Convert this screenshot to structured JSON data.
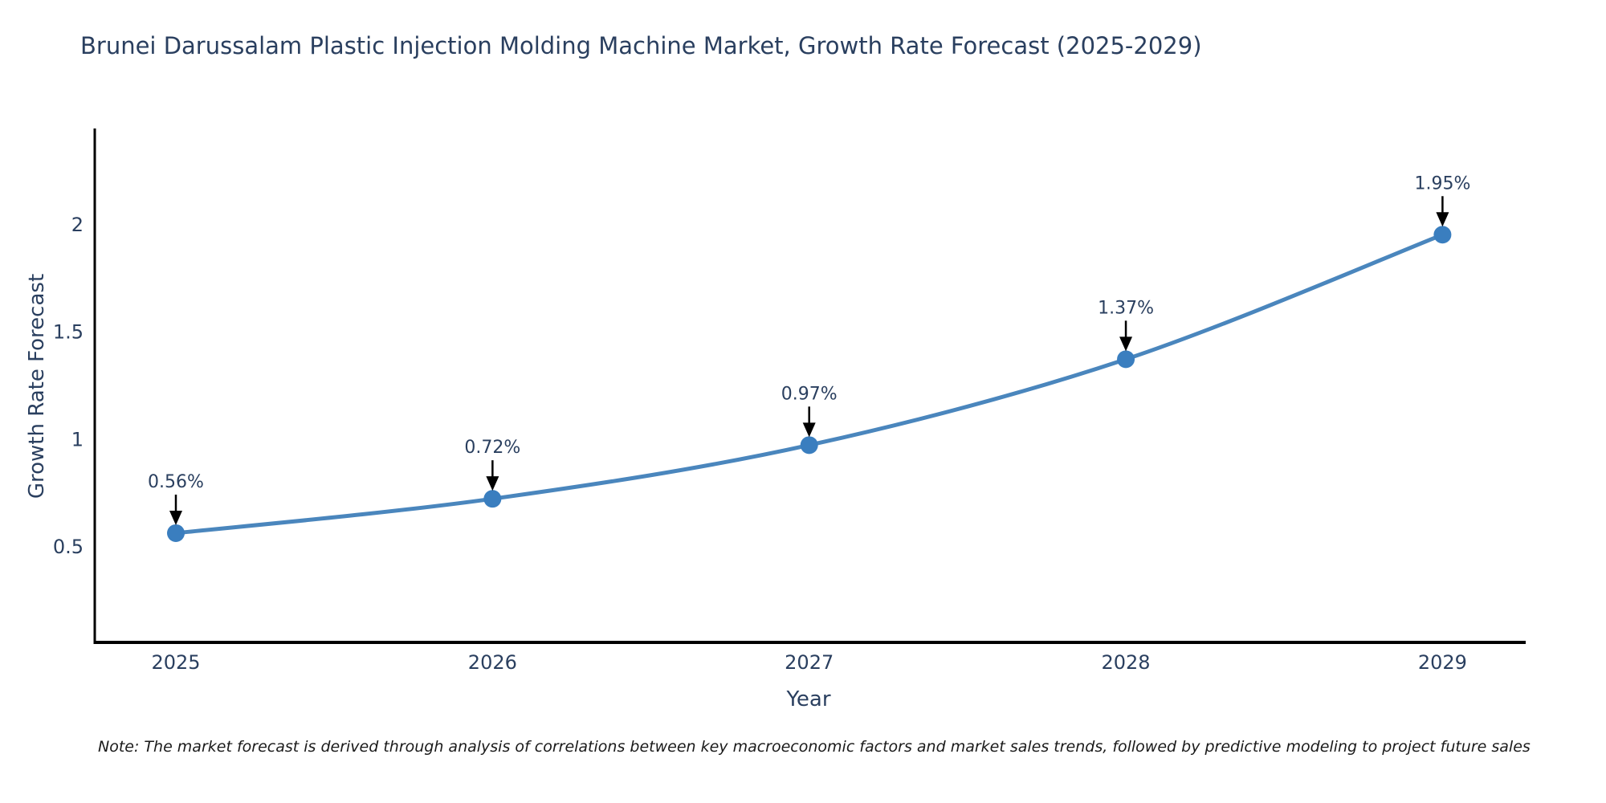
{
  "title": "Brunei Darussalam Plastic Injection Molding Machine Market, Growth Rate Forecast (2025-2029)",
  "note": "Note: The market forecast is derived through analysis of correlations between key macroeconomic factors and market sales trends, followed by predictive modeling to project future sales",
  "chart_data": {
    "type": "line",
    "title": "Brunei Darussalam Plastic Injection Molding Machine Market, Growth Rate Forecast (2025-2029)",
    "x": [
      2025,
      2026,
      2027,
      2028,
      2029
    ],
    "values": [
      0.56,
      0.72,
      0.97,
      1.37,
      1.95
    ],
    "point_labels": [
      "0.56%",
      "0.72%",
      "0.97%",
      "1.37%",
      "1.95%"
    ],
    "xlabel": "Year",
    "ylabel": "Growth Rate Forecast",
    "yticks": [
      0.5,
      1,
      1.5,
      2
    ],
    "ylim": [
      0.05,
      2.45
    ],
    "xlim": [
      2024.74,
      2029.27
    ],
    "grid": false,
    "legend": "none",
    "line_style": "spline",
    "line_color": "#4a86bd",
    "marker_color": "#3a7ebf",
    "axis_color": "#000000",
    "text_color": "#2a3f5f",
    "annotation_arrow_color": "#000000"
  }
}
